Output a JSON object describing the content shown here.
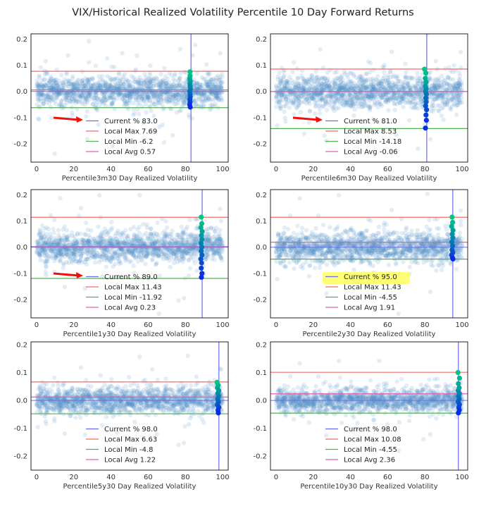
{
  "suptitle": "VIX/Historical Realized Volatility Percentile 10 Day Forward Returns",
  "colors": {
    "scatter": "#4f8fc4",
    "current": "#6b6bf0",
    "local_max": "#f06b6b",
    "local_min": "#55b055",
    "local_avg": "#e060b0",
    "highlight": "#ffff66",
    "arrow": "#ee1111",
    "zero": "#7070e0"
  },
  "chart_data": [
    {
      "type": "scatter",
      "xlabel": "Percentile3m30 Day Realized Volatility",
      "xlim": [
        -3,
        103
      ],
      "ylim": [
        -0.27,
        0.22
      ],
      "xticks": [
        0,
        20,
        40,
        60,
        80,
        100
      ],
      "yticks": [
        -0.2,
        -0.1,
        0.0,
        0.1,
        0.2
      ],
      "ytick_labels": [
        "-0.2",
        "-0.1",
        "0.0",
        "0.1",
        "0.2"
      ],
      "current": 83.0,
      "local_max": 0.0769,
      "local_min": -0.062,
      "local_avg": 0.0057,
      "legend": [
        "Current % 83.0",
        "Local Max 7.69",
        "Local Min -6.2",
        "Local Avg 0.57"
      ],
      "annotation": "arrow",
      "spread": 0.028,
      "highlight_points": [
        {
          "x": 82.5,
          "y": 0.075
        },
        {
          "x": 82.5,
          "y": 0.06
        },
        {
          "x": 82.3,
          "y": 0.05
        },
        {
          "x": 82.6,
          "y": 0.04
        },
        {
          "x": 82.4,
          "y": 0.03
        },
        {
          "x": 82.5,
          "y": 0.02
        },
        {
          "x": 82.7,
          "y": 0.01
        },
        {
          "x": 82.3,
          "y": 0.0
        },
        {
          "x": 82.5,
          "y": -0.01
        },
        {
          "x": 82.6,
          "y": -0.02
        },
        {
          "x": 82.4,
          "y": -0.03
        },
        {
          "x": 82.5,
          "y": -0.04
        },
        {
          "x": 82.3,
          "y": -0.05
        },
        {
          "x": 82.6,
          "y": -0.06
        }
      ]
    },
    {
      "type": "scatter",
      "xlabel": "Percentile6m30 Day Realized Volatility",
      "xlim": [
        -3,
        103
      ],
      "ylim": [
        -0.27,
        0.22
      ],
      "xticks": [
        0,
        20,
        40,
        60,
        80,
        100
      ],
      "yticks": [
        -0.2,
        -0.1,
        0.0,
        0.1,
        0.2
      ],
      "ytick_labels": [
        "-0.2",
        "-0.1",
        "0.0",
        "0.1",
        "0.2"
      ],
      "current": 81.0,
      "local_max": 0.0853,
      "local_min": -0.1418,
      "local_avg": -0.0006,
      "legend": [
        "Current % 81.0",
        "Local Max 8.53",
        "Local Min -14.18",
        "Local Avg -0.06"
      ],
      "annotation": "arrow",
      "spread": 0.03,
      "highlight_points": [
        {
          "x": 79.8,
          "y": 0.085
        },
        {
          "x": 80.5,
          "y": 0.07
        },
        {
          "x": 80.2,
          "y": 0.05
        },
        {
          "x": 80.6,
          "y": 0.035
        },
        {
          "x": 80.3,
          "y": 0.02
        },
        {
          "x": 80.7,
          "y": 0.01
        },
        {
          "x": 80.4,
          "y": 0.0
        },
        {
          "x": 80.8,
          "y": -0.01
        },
        {
          "x": 80.5,
          "y": -0.025
        },
        {
          "x": 80.7,
          "y": -0.04
        },
        {
          "x": 80.4,
          "y": -0.055
        },
        {
          "x": 80.9,
          "y": -0.07
        },
        {
          "x": 80.6,
          "y": -0.09
        },
        {
          "x": 80.8,
          "y": -0.11
        },
        {
          "x": 80.3,
          "y": -0.14
        }
      ]
    },
    {
      "type": "scatter",
      "xlabel": "Percentile1y30 Day Realized Volatility",
      "xlim": [
        -3,
        103
      ],
      "ylim": [
        -0.27,
        0.22
      ],
      "xticks": [
        0,
        20,
        40,
        60,
        80,
        100
      ],
      "yticks": [
        -0.2,
        -0.1,
        0.0,
        0.1,
        0.2
      ],
      "ytick_labels": [
        "-0.2",
        "-0.1",
        "0.0",
        "0.1",
        "0.2"
      ],
      "current": 89.0,
      "local_max": 0.1143,
      "local_min": -0.1192,
      "local_avg": 0.0023,
      "legend": [
        "Current % 89.0",
        "Local Max 11.43",
        "Local Min -11.92",
        "Local Avg 0.23"
      ],
      "annotation": "arrow",
      "spread": 0.028,
      "highlight_points": [
        {
          "x": 88.5,
          "y": 0.115
        },
        {
          "x": 88.8,
          "y": 0.09
        },
        {
          "x": 88.3,
          "y": 0.075
        },
        {
          "x": 89.0,
          "y": 0.06
        },
        {
          "x": 88.6,
          "y": 0.045
        },
        {
          "x": 88.9,
          "y": 0.03
        },
        {
          "x": 88.4,
          "y": 0.015
        },
        {
          "x": 88.8,
          "y": 0.0
        },
        {
          "x": 88.5,
          "y": -0.015
        },
        {
          "x": 88.9,
          "y": -0.03
        },
        {
          "x": 88.3,
          "y": -0.045
        },
        {
          "x": 88.7,
          "y": -0.06
        },
        {
          "x": 88.5,
          "y": -0.08
        },
        {
          "x": 88.9,
          "y": -0.1
        },
        {
          "x": 88.6,
          "y": -0.115
        }
      ]
    },
    {
      "type": "scatter",
      "xlabel": "Percentile2y30 Day Realized Volatility",
      "xlim": [
        -3,
        103
      ],
      "ylim": [
        -0.27,
        0.22
      ],
      "xticks": [
        0,
        20,
        40,
        60,
        80,
        100
      ],
      "yticks": [
        -0.2,
        -0.1,
        0.0,
        0.1,
        0.2
      ],
      "ytick_labels": [
        "-0.2",
        "-0.1",
        "0.0",
        "0.1",
        "0.2"
      ],
      "current": 95.0,
      "local_max": 0.1143,
      "local_min": -0.0455,
      "local_avg": 0.0191,
      "legend": [
        "Current % 95.0",
        "Local Max 11.43",
        "Local Min -4.55",
        "Local Avg 1.91"
      ],
      "annotation": "highlight",
      "spread": 0.028,
      "highlight_points": [
        {
          "x": 94.6,
          "y": 0.115
        },
        {
          "x": 94.9,
          "y": 0.095
        },
        {
          "x": 94.4,
          "y": 0.08
        },
        {
          "x": 95.1,
          "y": 0.065
        },
        {
          "x": 94.7,
          "y": 0.05
        },
        {
          "x": 95.0,
          "y": 0.035
        },
        {
          "x": 94.5,
          "y": 0.02
        },
        {
          "x": 94.9,
          "y": 0.005
        },
        {
          "x": 94.6,
          "y": -0.01
        },
        {
          "x": 95.0,
          "y": -0.02
        },
        {
          "x": 94.4,
          "y": -0.03
        },
        {
          "x": 94.8,
          "y": -0.04
        },
        {
          "x": 95.1,
          "y": -0.045
        }
      ]
    },
    {
      "type": "scatter",
      "xlabel": "Percentile5y30 Day Realized Volatility",
      "xlim": [
        -3,
        103
      ],
      "ylim": [
        -0.25,
        0.21
      ],
      "xticks": [
        0,
        20,
        40,
        60,
        80,
        100
      ],
      "yticks": [
        -0.2,
        -0.1,
        0.0,
        0.1,
        0.2
      ],
      "ytick_labels": [
        "-0.2",
        "-0.1",
        "0.0",
        "0.1",
        "0.2"
      ],
      "current": 98.0,
      "local_max": 0.0663,
      "local_min": -0.048,
      "local_avg": 0.0122,
      "legend": [
        "Current % 98.0",
        "Local Max 6.63",
        "Local Min -4.8",
        "Local Avg 1.22"
      ],
      "annotation": "none",
      "spread": 0.022,
      "highlight_points": [
        {
          "x": 97.0,
          "y": 0.065
        },
        {
          "x": 97.6,
          "y": 0.055
        },
        {
          "x": 97.2,
          "y": 0.045
        },
        {
          "x": 97.9,
          "y": 0.035
        },
        {
          "x": 97.4,
          "y": 0.025
        },
        {
          "x": 97.8,
          "y": 0.015
        },
        {
          "x": 97.3,
          "y": 0.005
        },
        {
          "x": 97.7,
          "y": -0.005
        },
        {
          "x": 97.2,
          "y": -0.015
        },
        {
          "x": 97.9,
          "y": -0.025
        },
        {
          "x": 97.5,
          "y": -0.035
        },
        {
          "x": 97.7,
          "y": -0.045
        }
      ]
    },
    {
      "type": "scatter",
      "xlabel": "Percentile10y30 Day Realized Volatility",
      "xlim": [
        -3,
        103
      ],
      "ylim": [
        -0.25,
        0.21
      ],
      "xticks": [
        0,
        20,
        40,
        60,
        80,
        100
      ],
      "yticks": [
        -0.2,
        -0.1,
        0.0,
        0.1,
        0.2
      ],
      "ytick_labels": [
        "-0.2",
        "-0.1",
        "0.0",
        "0.1",
        "0.2"
      ],
      "current": 98.0,
      "local_max": 0.1008,
      "local_min": -0.0455,
      "local_avg": 0.0236,
      "legend": [
        "Current % 98.0",
        "Local Max 10.08",
        "Local Min -4.55",
        "Local Avg 2.36"
      ],
      "annotation": "none",
      "spread": 0.02,
      "highlight_points": [
        {
          "x": 97.8,
          "y": 0.1
        },
        {
          "x": 98.6,
          "y": 0.08
        },
        {
          "x": 98.0,
          "y": 0.06
        },
        {
          "x": 98.4,
          "y": 0.045
        },
        {
          "x": 97.9,
          "y": 0.035
        },
        {
          "x": 98.5,
          "y": 0.025
        },
        {
          "x": 98.1,
          "y": 0.015
        },
        {
          "x": 98.4,
          "y": 0.005
        },
        {
          "x": 97.9,
          "y": -0.005
        },
        {
          "x": 98.6,
          "y": -0.015
        },
        {
          "x": 98.2,
          "y": -0.025
        },
        {
          "x": 98.5,
          "y": -0.035
        },
        {
          "x": 98.0,
          "y": -0.045
        }
      ]
    }
  ]
}
